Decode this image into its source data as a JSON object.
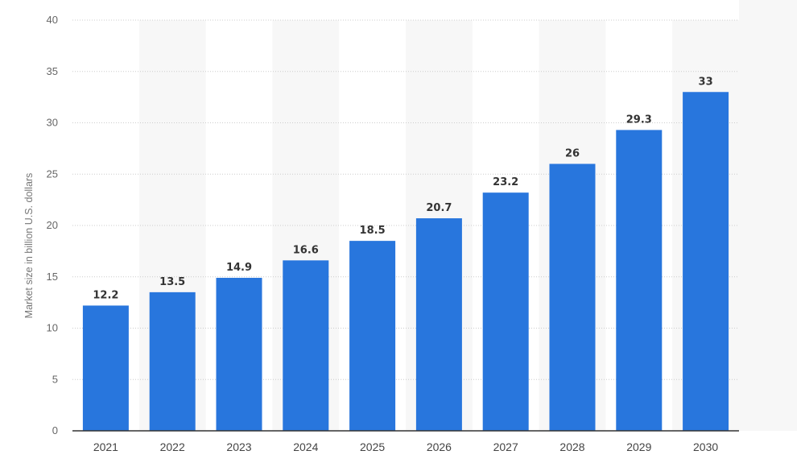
{
  "chart_data": {
    "type": "bar",
    "categories": [
      "2021",
      "2022",
      "2023",
      "2024",
      "2025",
      "2026",
      "2027",
      "2028",
      "2029",
      "2030"
    ],
    "values": [
      12.2,
      13.5,
      14.9,
      16.6,
      18.5,
      20.7,
      23.2,
      26,
      29.3,
      33
    ],
    "data_labels": [
      "12.2",
      "13.5",
      "14.9",
      "16.6",
      "18.5",
      "20.7",
      "23.2",
      "26",
      "29.3",
      "33"
    ],
    "ylabel": "Market size in billion U.S. dollars",
    "xlabel": "",
    "ylim": [
      0,
      40
    ],
    "yticks": [
      "0",
      "5",
      "10",
      "15",
      "20",
      "25",
      "30",
      "35",
      "40"
    ],
    "grid": true,
    "legend": "none",
    "colors": {
      "bar": "#2876dd",
      "alt_column_band": "#f7f7f7",
      "gridline": "#cccccc"
    }
  }
}
